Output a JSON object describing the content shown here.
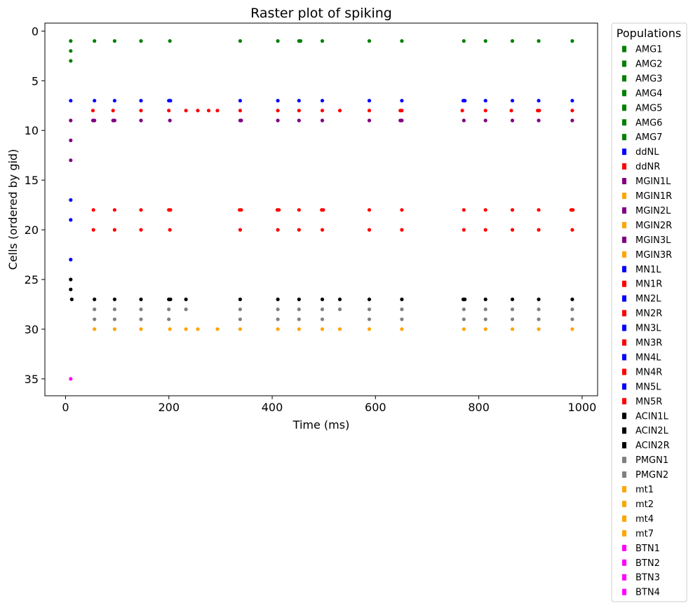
{
  "chart_data": {
    "type": "scatter",
    "title": "Raster plot of spiking",
    "xlabel": "Time (ms)",
    "ylabel": "Cells (ordered by gid)",
    "xlim": [
      -40,
      1030
    ],
    "ylim": [
      -0.8,
      36.7
    ],
    "y_inverted": true,
    "grid": false,
    "x_ticks": [
      0,
      200,
      400,
      600,
      800,
      1000
    ],
    "y_ticks": [
      0,
      5,
      10,
      15,
      20,
      25,
      30,
      35
    ],
    "legend": {
      "title": "Populations",
      "position": "outside-right"
    },
    "series": [
      {
        "name": "AMG1",
        "color": "#008000",
        "points": [
          [
            10,
            1
          ],
          [
            56,
            1
          ],
          [
            95,
            1
          ],
          [
            146,
            1
          ],
          [
            202,
            1
          ],
          [
            338,
            1
          ],
          [
            411,
            1
          ],
          [
            452,
            1
          ],
          [
            455,
            1
          ],
          [
            497,
            1
          ],
          [
            588,
            1
          ],
          [
            651,
            1
          ],
          [
            771,
            1
          ],
          [
            813,
            1
          ],
          [
            865,
            1
          ],
          [
            916,
            1
          ],
          [
            981,
            1
          ]
        ]
      },
      {
        "name": "AMG2",
        "color": "#008000",
        "points": [
          [
            10,
            2
          ]
        ]
      },
      {
        "name": "AMG3",
        "color": "#008000",
        "points": [
          [
            10,
            3
          ]
        ]
      },
      {
        "name": "AMG4",
        "color": "#008000",
        "points": []
      },
      {
        "name": "AMG5",
        "color": "#008000",
        "points": []
      },
      {
        "name": "AMG6",
        "color": "#008000",
        "points": []
      },
      {
        "name": "AMG7",
        "color": "#008000",
        "points": []
      },
      {
        "name": "ddNL",
        "color": "#0000ff",
        "points": [
          [
            10,
            7
          ],
          [
            56,
            7
          ],
          [
            95,
            7
          ],
          [
            146,
            7
          ],
          [
            200,
            7
          ],
          [
            203,
            7
          ],
          [
            338,
            7
          ],
          [
            411,
            7
          ],
          [
            452,
            7
          ],
          [
            497,
            7
          ],
          [
            588,
            7
          ],
          [
            651,
            7
          ],
          [
            770,
            7
          ],
          [
            773,
            7
          ],
          [
            813,
            7
          ],
          [
            865,
            7
          ],
          [
            916,
            7
          ],
          [
            981,
            7
          ]
        ]
      },
      {
        "name": "ddNR",
        "color": "#ff0000",
        "points": [
          [
            53,
            8
          ],
          [
            92,
            8
          ],
          [
            146,
            8
          ],
          [
            200,
            8
          ],
          [
            233,
            8
          ],
          [
            256,
            8
          ],
          [
            277,
            8
          ],
          [
            294,
            8
          ],
          [
            338,
            8
          ],
          [
            411,
            8
          ],
          [
            452,
            8
          ],
          [
            497,
            8
          ],
          [
            531,
            8
          ],
          [
            588,
            8
          ],
          [
            648,
            8
          ],
          [
            651,
            8
          ],
          [
            768,
            8
          ],
          [
            813,
            8
          ],
          [
            863,
            8
          ],
          [
            914,
            8
          ],
          [
            917,
            8
          ],
          [
            981,
            8
          ]
        ]
      },
      {
        "name": "MGIN1L",
        "color": "#800080",
        "points": [
          [
            10,
            9
          ],
          [
            53,
            9
          ],
          [
            56,
            9
          ],
          [
            92,
            9
          ],
          [
            95,
            9
          ],
          [
            146,
            9
          ],
          [
            202,
            9
          ],
          [
            338,
            9
          ],
          [
            340,
            9
          ],
          [
            411,
            9
          ],
          [
            452,
            9
          ],
          [
            497,
            9
          ],
          [
            588,
            9
          ],
          [
            648,
            9
          ],
          [
            651,
            9
          ],
          [
            771,
            9
          ],
          [
            813,
            9
          ],
          [
            865,
            9
          ],
          [
            916,
            9
          ],
          [
            981,
            9
          ]
        ]
      },
      {
        "name": "MGIN1R",
        "color": "#ffa500",
        "points": []
      },
      {
        "name": "MGIN2L",
        "color": "#800080",
        "points": [
          [
            10,
            11
          ]
        ]
      },
      {
        "name": "MGIN2R",
        "color": "#ffa500",
        "points": []
      },
      {
        "name": "MGIN3L",
        "color": "#800080",
        "points": [
          [
            10,
            13
          ]
        ]
      },
      {
        "name": "MGIN3R",
        "color": "#ffa500",
        "points": []
      },
      {
        "name": "MN1L",
        "color": "#0000ff",
        "points": []
      },
      {
        "name": "MN1R",
        "color": "#ff0000",
        "points": []
      },
      {
        "name": "MN2L",
        "color": "#0000ff",
        "points": [
          [
            10,
            17
          ]
        ]
      },
      {
        "name": "MN2R",
        "color": "#ff0000",
        "points": [
          [
            54,
            18
          ],
          [
            95,
            18
          ],
          [
            146,
            18
          ],
          [
            200,
            18
          ],
          [
            203,
            18
          ],
          [
            337,
            18
          ],
          [
            340,
            18
          ],
          [
            410,
            18
          ],
          [
            413,
            18
          ],
          [
            452,
            18
          ],
          [
            496,
            18
          ],
          [
            499,
            18
          ],
          [
            588,
            18
          ],
          [
            651,
            18
          ],
          [
            771,
            18
          ],
          [
            813,
            18
          ],
          [
            865,
            18
          ],
          [
            916,
            18
          ],
          [
            979,
            18
          ],
          [
            982,
            18
          ]
        ]
      },
      {
        "name": "MN3L",
        "color": "#0000ff",
        "points": [
          [
            10,
            19
          ]
        ]
      },
      {
        "name": "MN3R",
        "color": "#ff0000",
        "points": [
          [
            54,
            20
          ],
          [
            95,
            20
          ],
          [
            146,
            20
          ],
          [
            202,
            20
          ],
          [
            338,
            20
          ],
          [
            411,
            20
          ],
          [
            452,
            20
          ],
          [
            497,
            20
          ],
          [
            588,
            20
          ],
          [
            651,
            20
          ],
          [
            771,
            20
          ],
          [
            813,
            20
          ],
          [
            865,
            20
          ],
          [
            916,
            20
          ],
          [
            981,
            20
          ]
        ]
      },
      {
        "name": "MN4L",
        "color": "#0000ff",
        "points": []
      },
      {
        "name": "MN4R",
        "color": "#ff0000",
        "points": []
      },
      {
        "name": "MN5L",
        "color": "#0000ff",
        "points": [
          [
            10,
            23
          ]
        ]
      },
      {
        "name": "MN5R",
        "color": "#ff0000",
        "points": []
      },
      {
        "name": "ACIN1L",
        "color": "#000000",
        "points": [
          [
            10,
            25
          ]
        ]
      },
      {
        "name": "ACIN2L",
        "color": "#000000",
        "points": [
          [
            10,
            26
          ]
        ]
      },
      {
        "name": "ACIN2R",
        "color": "#000000",
        "points": [
          [
            12,
            27
          ],
          [
            56,
            27
          ],
          [
            95,
            27
          ],
          [
            146,
            27
          ],
          [
            200,
            27
          ],
          [
            203,
            27
          ],
          [
            233,
            27
          ],
          [
            338,
            27
          ],
          [
            411,
            27
          ],
          [
            452,
            27
          ],
          [
            497,
            27
          ],
          [
            531,
            27
          ],
          [
            588,
            27
          ],
          [
            651,
            27
          ],
          [
            770,
            27
          ],
          [
            773,
            27
          ],
          [
            813,
            27
          ],
          [
            865,
            27
          ],
          [
            916,
            27
          ],
          [
            981,
            27
          ]
        ]
      },
      {
        "name": "PMGN1",
        "color": "#808080",
        "points": [
          [
            56,
            28
          ],
          [
            95,
            28
          ],
          [
            146,
            28
          ],
          [
            200,
            28
          ],
          [
            233,
            28
          ],
          [
            338,
            28
          ],
          [
            411,
            28
          ],
          [
            452,
            28
          ],
          [
            497,
            28
          ],
          [
            531,
            28
          ],
          [
            588,
            28
          ],
          [
            651,
            28
          ],
          [
            771,
            28
          ],
          [
            813,
            28
          ],
          [
            865,
            28
          ],
          [
            916,
            28
          ],
          [
            981,
            28
          ]
        ]
      },
      {
        "name": "PMGN2",
        "color": "#808080",
        "points": [
          [
            56,
            29
          ],
          [
            95,
            29
          ],
          [
            146,
            29
          ],
          [
            200,
            29
          ],
          [
            338,
            29
          ],
          [
            411,
            29
          ],
          [
            452,
            29
          ],
          [
            497,
            29
          ],
          [
            588,
            29
          ],
          [
            651,
            29
          ],
          [
            771,
            29
          ],
          [
            813,
            29
          ],
          [
            865,
            29
          ],
          [
            916,
            29
          ],
          [
            981,
            29
          ]
        ]
      },
      {
        "name": "mt1",
        "color": "#ffa500",
        "points": [
          [
            56,
            30
          ],
          [
            95,
            30
          ],
          [
            146,
            30
          ],
          [
            202,
            30
          ],
          [
            233,
            30
          ],
          [
            256,
            30
          ],
          [
            294,
            30
          ],
          [
            338,
            30
          ],
          [
            411,
            30
          ],
          [
            452,
            30
          ],
          [
            497,
            30
          ],
          [
            531,
            30
          ],
          [
            588,
            30
          ],
          [
            651,
            30
          ],
          [
            771,
            30
          ],
          [
            813,
            30
          ],
          [
            865,
            30
          ],
          [
            916,
            30
          ],
          [
            981,
            30
          ]
        ]
      },
      {
        "name": "mt2",
        "color": "#ffa500",
        "points": []
      },
      {
        "name": "mt4",
        "color": "#ffa500",
        "points": []
      },
      {
        "name": "mt7",
        "color": "#ffa500",
        "points": []
      },
      {
        "name": "BTN1",
        "color": "#ff00ff",
        "points": [
          [
            10,
            35
          ]
        ]
      },
      {
        "name": "BTN2",
        "color": "#ff00ff",
        "points": []
      },
      {
        "name": "BTN3",
        "color": "#ff00ff",
        "points": []
      },
      {
        "name": "BTN4",
        "color": "#ff00ff",
        "points": []
      }
    ]
  }
}
